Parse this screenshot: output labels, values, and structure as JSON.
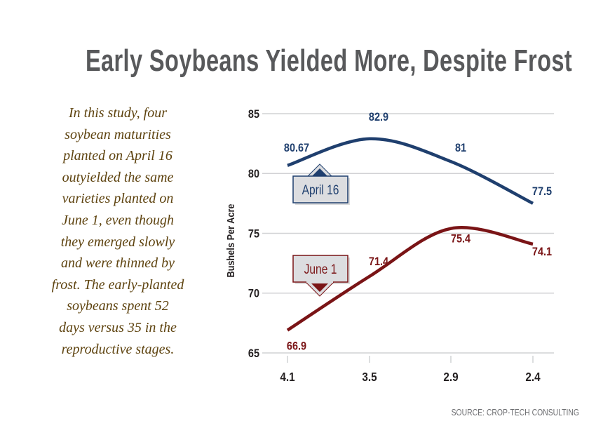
{
  "title": "Early Soybeans Yielded More, Despite Frost",
  "blurb_lines": [
    "In this study, four",
    "soybean maturities",
    "planted on April 16",
    "outyielded the same",
    "varieties planted on",
    "June 1, even though",
    "they emerged slowly",
    "and were thinned by",
    "frost. The early-planted",
    "soybeans spent 52",
    "days versus 35 in the",
    "reproductive stages."
  ],
  "source": "SOURCE: CROP-TECH CONSULTING",
  "chart_data": {
    "type": "line",
    "title": "",
    "xlabel": "",
    "ylabel": "Bushels Per Acre",
    "categories": [
      "4.1",
      "3.5",
      "2.9",
      "2.4"
    ],
    "ylim": [
      65,
      85
    ],
    "yticks": [
      85,
      80,
      75,
      70,
      65
    ],
    "grid": true,
    "series": [
      {
        "name": "April 16",
        "values": [
          80.67,
          82.9,
          81,
          77.5
        ],
        "labels": [
          "80.67",
          "82.9",
          "81",
          "77.5"
        ],
        "color": "#1f3f6e"
      },
      {
        "name": "June 1",
        "values": [
          66.9,
          71.4,
          75.4,
          74.1
        ],
        "labels": [
          "66.9",
          "71.4",
          "75.4",
          "74.1"
        ],
        "color": "#7a1416"
      }
    ]
  }
}
